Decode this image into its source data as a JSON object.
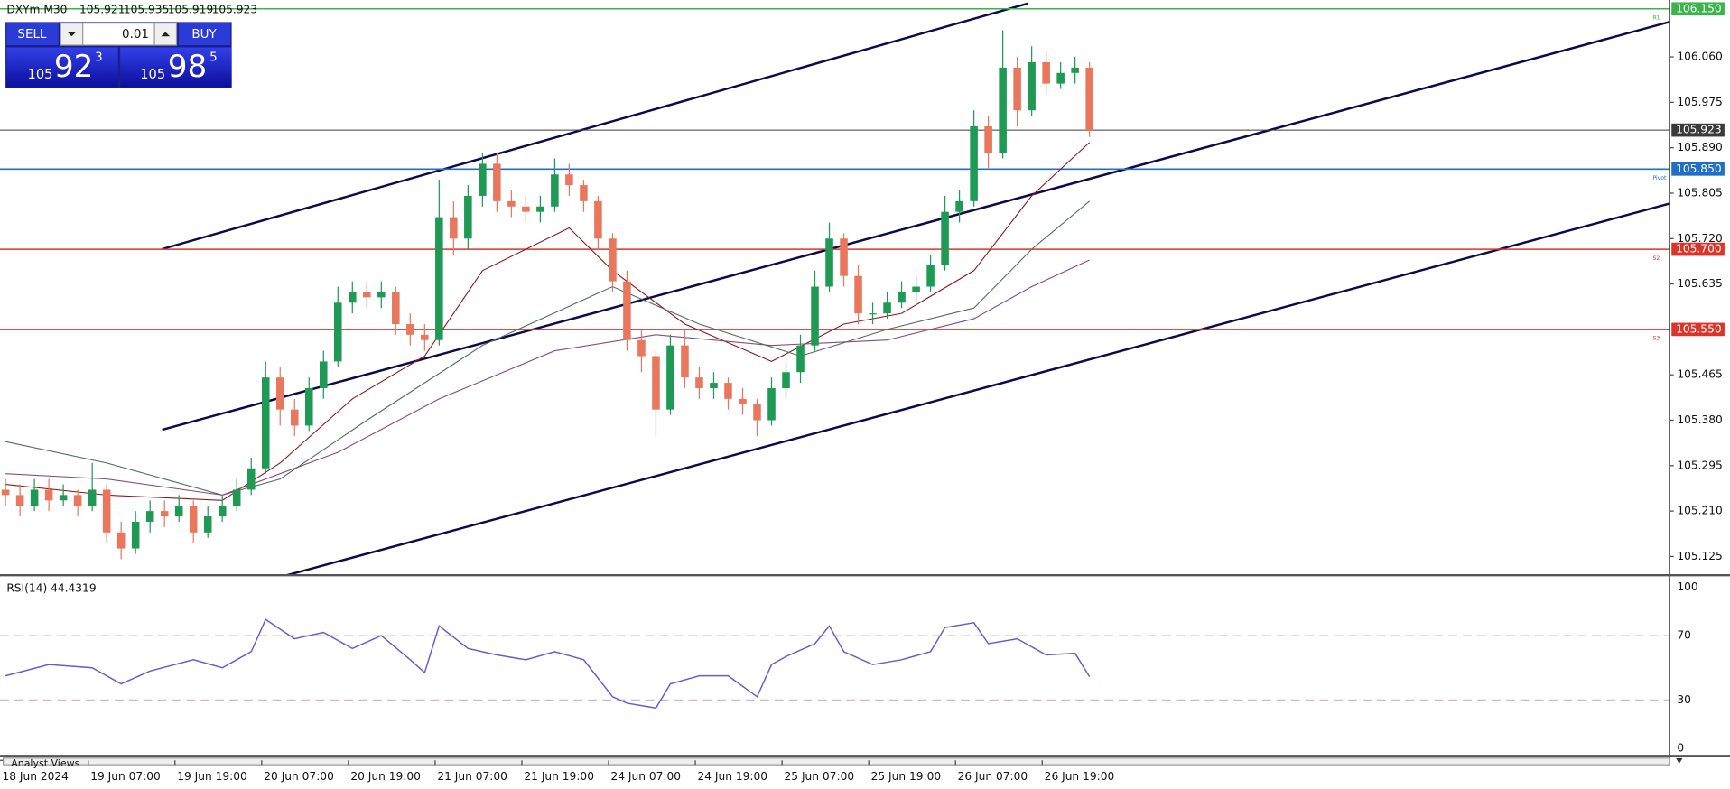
{
  "header": {
    "symbol": "DXYm,M30",
    "ohlc": [
      105.921,
      105.935,
      105.919,
      105.923
    ]
  },
  "trade_panel": {
    "sell": "SELL",
    "buy": "BUY",
    "lot": "0.01",
    "bid": {
      "big": "105",
      "main": "92",
      "sup": "3"
    },
    "ask": {
      "big": "105",
      "main": "98",
      "sup": "5"
    }
  },
  "chart": {
    "ylim": [
      105.125,
      106.15
    ],
    "yticks": [
      {
        "value": 106.06,
        "label": "106.060"
      },
      {
        "value": 105.975,
        "label": "105.975"
      },
      {
        "value": 105.89,
        "label": "105.890"
      },
      {
        "value": 105.805,
        "label": "105.805"
      },
      {
        "value": 105.72,
        "label": "105.720"
      },
      {
        "value": 105.635,
        "label": "105.635"
      },
      {
        "value": 105.465,
        "label": "105.465"
      },
      {
        "value": 105.38,
        "label": "105.380"
      },
      {
        "value": 105.295,
        "label": "105.295"
      },
      {
        "value": 105.21,
        "label": "105.210"
      },
      {
        "value": 105.125,
        "label": "105.125"
      }
    ],
    "levels": [
      {
        "name": "R1",
        "value": 106.15,
        "label": "106.150",
        "color": "#3cb44b"
      },
      {
        "value": 105.923,
        "label": "105.923",
        "color": "#3a3a3a"
      },
      {
        "name": "Pivot",
        "value": 105.85,
        "label": "105.850",
        "color": "#1f6fc5"
      },
      {
        "name": "S2",
        "value": 105.7,
        "label": "105.700",
        "color": "#d9352b"
      },
      {
        "name": "S3",
        "value": 105.55,
        "label": "105.550",
        "color": "#d9352b"
      }
    ],
    "up_color": "#1e9a55",
    "down_color": "#e8775e",
    "candles": [
      [
        105.25,
        105.27,
        105.22,
        105.24
      ],
      [
        105.24,
        105.26,
        105.2,
        105.22
      ],
      [
        105.22,
        105.27,
        105.21,
        105.25
      ],
      [
        105.25,
        105.27,
        105.21,
        105.23
      ],
      [
        105.23,
        105.26,
        105.22,
        105.24
      ],
      [
        105.24,
        105.25,
        105.2,
        105.22
      ],
      [
        105.22,
        105.3,
        105.21,
        105.25
      ],
      [
        105.25,
        105.26,
        105.15,
        105.17
      ],
      [
        105.17,
        105.19,
        105.12,
        105.14
      ],
      [
        105.14,
        105.21,
        105.13,
        105.19
      ],
      [
        105.19,
        105.23,
        105.17,
        105.21
      ],
      [
        105.21,
        105.23,
        105.18,
        105.2
      ],
      [
        105.2,
        105.24,
        105.19,
        105.22
      ],
      [
        105.22,
        105.23,
        105.15,
        105.17
      ],
      [
        105.17,
        105.22,
        105.16,
        105.2
      ],
      [
        105.2,
        105.24,
        105.19,
        105.22
      ],
      [
        105.22,
        105.27,
        105.21,
        105.25
      ],
      [
        105.25,
        105.31,
        105.24,
        105.29
      ],
      [
        105.29,
        105.49,
        105.28,
        105.46
      ],
      [
        105.46,
        105.48,
        105.37,
        105.4
      ],
      [
        105.4,
        105.42,
        105.35,
        105.37
      ],
      [
        105.37,
        105.46,
        105.36,
        105.44
      ],
      [
        105.44,
        105.51,
        105.42,
        105.49
      ],
      [
        105.49,
        105.63,
        105.48,
        105.6
      ],
      [
        105.6,
        105.64,
        105.58,
        105.62
      ],
      [
        105.62,
        105.64,
        105.59,
        105.61
      ],
      [
        105.61,
        105.64,
        105.59,
        105.62
      ],
      [
        105.62,
        105.63,
        105.54,
        105.56
      ],
      [
        105.56,
        105.58,
        105.52,
        105.54
      ],
      [
        105.54,
        105.56,
        105.51,
        105.53
      ],
      [
        105.53,
        105.83,
        105.52,
        105.76
      ],
      [
        105.76,
        105.79,
        105.69,
        105.72
      ],
      [
        105.72,
        105.82,
        105.7,
        105.8
      ],
      [
        105.8,
        105.88,
        105.78,
        105.86
      ],
      [
        105.86,
        105.88,
        105.77,
        105.79
      ],
      [
        105.79,
        105.81,
        105.76,
        105.78
      ],
      [
        105.78,
        105.8,
        105.75,
        105.77
      ],
      [
        105.77,
        105.8,
        105.75,
        105.78
      ],
      [
        105.78,
        105.87,
        105.77,
        105.84
      ],
      [
        105.84,
        105.86,
        105.8,
        105.82
      ],
      [
        105.82,
        105.83,
        105.77,
        105.79
      ],
      [
        105.79,
        105.8,
        105.7,
        105.72
      ],
      [
        105.72,
        105.73,
        105.62,
        105.64
      ],
      [
        105.64,
        105.66,
        105.51,
        105.53
      ],
      [
        105.53,
        105.55,
        105.47,
        105.5
      ],
      [
        105.5,
        105.51,
        105.35,
        105.4
      ],
      [
        105.4,
        105.54,
        105.39,
        105.52
      ],
      [
        105.52,
        105.55,
        105.44,
        105.46
      ],
      [
        105.46,
        105.48,
        105.42,
        105.44
      ],
      [
        105.44,
        105.47,
        105.42,
        105.45
      ],
      [
        105.45,
        105.46,
        105.4,
        105.42
      ],
      [
        105.42,
        105.44,
        105.39,
        105.41
      ],
      [
        105.41,
        105.42,
        105.35,
        105.38
      ],
      [
        105.38,
        105.46,
        105.37,
        105.44
      ],
      [
        105.44,
        105.49,
        105.42,
        105.47
      ],
      [
        105.47,
        105.54,
        105.45,
        105.52
      ],
      [
        105.52,
        105.66,
        105.51,
        105.63
      ],
      [
        105.63,
        105.75,
        105.62,
        105.72
      ],
      [
        105.72,
        105.73,
        105.63,
        105.65
      ],
      [
        105.65,
        105.67,
        105.56,
        105.58
      ],
      [
        105.58,
        105.6,
        105.56,
        105.58
      ],
      [
        105.58,
        105.62,
        105.57,
        105.6
      ],
      [
        105.6,
        105.64,
        105.59,
        105.62
      ],
      [
        105.62,
        105.65,
        105.6,
        105.63
      ],
      [
        105.63,
        105.69,
        105.62,
        105.67
      ],
      [
        105.67,
        105.8,
        105.66,
        105.77
      ],
      [
        105.77,
        105.81,
        105.75,
        105.79
      ],
      [
        105.79,
        105.96,
        105.78,
        105.93
      ],
      [
        105.93,
        105.95,
        105.85,
        105.88
      ],
      [
        105.88,
        106.11,
        105.87,
        106.04
      ],
      [
        106.04,
        106.06,
        105.93,
        105.96
      ],
      [
        105.96,
        106.08,
        105.95,
        106.05
      ],
      [
        106.05,
        106.07,
        105.99,
        106.01
      ],
      [
        106.01,
        106.05,
        106.0,
        106.03
      ],
      [
        106.03,
        106.06,
        106.01,
        106.04
      ],
      [
        106.04,
        106.05,
        105.91,
        105.923
      ]
    ],
    "moving_averages": [
      {
        "color": "#8b1a1a",
        "x": [
          0,
          7,
          15,
          19,
          24,
          29,
          33,
          39,
          42,
          47,
          53,
          58,
          62,
          67,
          71,
          75
        ],
        "values": [
          105.26,
          105.24,
          105.23,
          105.3,
          105.42,
          105.5,
          105.66,
          105.74,
          105.66,
          105.56,
          105.49,
          105.56,
          105.58,
          105.66,
          105.8,
          105.9
        ]
      },
      {
        "color": "#4f6f5f",
        "x": [
          0,
          7,
          15,
          19,
          25,
          33,
          42,
          48,
          55,
          61,
          67,
          71,
          75
        ],
        "values": [
          105.34,
          105.3,
          105.24,
          105.27,
          105.38,
          105.52,
          105.63,
          105.56,
          105.5,
          105.55,
          105.59,
          105.7,
          105.79
        ]
      },
      {
        "color": "#8a4a7a",
        "x": [
          0,
          7,
          15,
          23,
          30,
          38,
          45,
          53,
          61,
          67,
          71,
          75
        ],
        "values": [
          105.28,
          105.27,
          105.24,
          105.32,
          105.42,
          105.51,
          105.54,
          105.52,
          105.53,
          105.57,
          105.63,
          105.68
        ]
      }
    ],
    "time_labels": [
      "18 Jun 2024",
      "19 Jun 07:00",
      "19 Jun 19:00",
      "20 Jun 07:00",
      "20 Jun 19:00",
      "21 Jun 07:00",
      "21 Jun 19:00",
      "24 Jun 07:00",
      "24 Jun 19:00",
      "25 Jun 07:00",
      "25 Jun 19:00",
      "26 Jun 07:00",
      "26 Jun 19:00"
    ]
  },
  "rsi": {
    "title": "RSI(14) 44.4319",
    "color": "#6a5acd",
    "ylim": [
      0,
      100
    ],
    "yticks": [
      100,
      70,
      30,
      0
    ],
    "levels": [
      70,
      30
    ],
    "x": [
      0,
      3,
      6,
      8,
      10,
      13,
      15,
      17,
      18,
      20,
      22,
      24,
      26,
      28,
      29,
      30,
      32,
      34,
      36,
      38,
      40,
      42,
      43,
      45,
      46,
      48,
      50,
      52,
      53,
      54,
      56,
      57,
      58,
      60,
      62,
      64,
      65,
      67,
      68,
      70,
      72,
      74,
      75
    ],
    "values": [
      45,
      52,
      50,
      40,
      48,
      55,
      50,
      60,
      80,
      68,
      72,
      62,
      70,
      55,
      47,
      76,
      62,
      58,
      55,
      60,
      55,
      32,
      28,
      25,
      40,
      45,
      45,
      32,
      52,
      57,
      65,
      76,
      60,
      52,
      55,
      60,
      75,
      78,
      65,
      68,
      58,
      59,
      44.4319
    ]
  },
  "footer": {
    "tab": "Analyst Views"
  }
}
